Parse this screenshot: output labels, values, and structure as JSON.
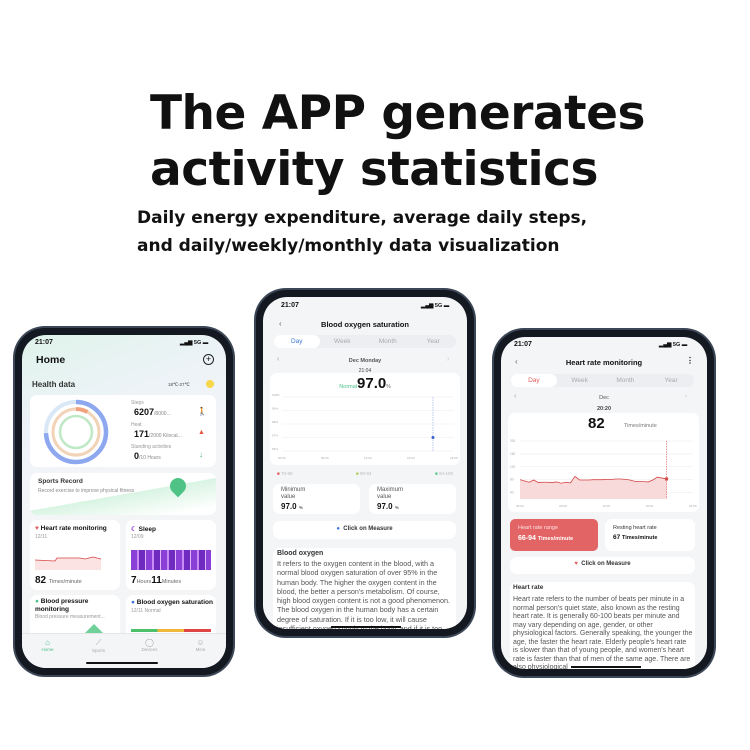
{
  "headline": {
    "line1": "The APP generates",
    "line2": "activity statistics"
  },
  "subtitle": {
    "line1": "Daily energy expenditure, average daily steps,",
    "line2": "and daily/weekly/monthly data visualization"
  },
  "colors": {
    "accent_blue": "#3a78d8",
    "heart_red": "#e25c5c",
    "oxygen_green": "#4cc08a",
    "sleep_purple": "#9b45e0"
  },
  "phone_home": {
    "time": "21:07",
    "network": "5G",
    "title": "Home",
    "plus_icon": "plus-circle-icon",
    "health_data": "Health data",
    "weather": "18℃-27℃",
    "steps": {
      "label": "Steps",
      "value": "6207",
      "goal": "/8000..."
    },
    "heat": {
      "label": "Heat",
      "value": "171",
      "goal": "/2000 Kilocal..."
    },
    "standing": {
      "label": "Standing activities",
      "value": "0",
      "goal": "/10 Hours"
    },
    "sports": {
      "title": "Sports Record",
      "desc": "Record exercise to improve physical fitness"
    },
    "heart": {
      "title": "Heart rate monitoring",
      "date": "12/11",
      "value": "82",
      "unit": "Times/minute"
    },
    "sleep": {
      "title": "Sleep",
      "date": "12/09",
      "hours": "7",
      "hours_unit": "Hours",
      "minutes": "11",
      "minutes_unit": "Minutes"
    },
    "bp": {
      "title": "Blood pressure monitoring",
      "desc": "Blood pressure measurement..."
    },
    "oxy": {
      "title": "Blood oxygen saturation",
      "desc": "12/11 Normal"
    },
    "tabs": [
      {
        "label": "Home",
        "icon": "home-icon"
      },
      {
        "label": "Sports",
        "icon": "sports-icon"
      },
      {
        "label": "Devices",
        "icon": "watch-icon"
      },
      {
        "label": "Mine",
        "icon": "user-icon"
      }
    ]
  },
  "phone_oxygen": {
    "time": "21:07",
    "network": "5G",
    "title": "Blood oxygen saturation",
    "tabs": [
      "Day",
      "Week",
      "Month",
      "Year"
    ],
    "date": "Dec Monday",
    "reading_time": "21:04",
    "status": "Normal",
    "value": "97.0",
    "unit": "%",
    "chart_data": {
      "type": "scatter",
      "y_ticks": [
        "100%",
        "99%",
        "98%",
        "97%",
        "96%"
      ],
      "x_ticks": [
        "00:00",
        "06:00",
        "12:00",
        "18:00",
        "24:00"
      ],
      "points": [
        {
          "x": "21:04",
          "y": 97.0
        }
      ]
    },
    "legend": [
      {
        "label": "70-90",
        "color": "#d9534f"
      },
      {
        "label": "90-94",
        "color": "#a8c94a"
      },
      {
        "label": "94-100",
        "color": "#4cc08a"
      }
    ],
    "min": {
      "label": "Minimum value",
      "value": "97.0",
      "unit": "%"
    },
    "max": {
      "label": "Maximum value",
      "value": "97.0",
      "unit": "%"
    },
    "measure": "Click on Measure",
    "info_title": "Blood oxygen",
    "info_text": "It refers to the oxygen content in the blood, with a normal blood oxygen saturation of over 95% in the human body. The higher the oxygen content in the blood, the better a person's metabolism. Of course, high blood oxygen content is not a good phenomenon. The blood oxygen in the human body has a certain degree of saturation. If it is too low, it will cause insufficient oxygen supply to the body, and if it is too high, it will lead to cell aging in the body."
  },
  "phone_heart": {
    "time": "21:07",
    "network": "5G",
    "title": "Heart rate monitoring",
    "tabs": [
      "Day",
      "Week",
      "Month",
      "Year"
    ],
    "date": "Dec",
    "reading_time": "20:20",
    "value": "82",
    "unit": "Times/minute",
    "chart_data": {
      "type": "area",
      "y_ticks": [
        "200",
        "160",
        "120",
        "80",
        "40"
      ],
      "ylim": [
        20,
        200
      ],
      "x_ticks": [
        "00:00",
        "06:00",
        "12:00",
        "18:00",
        "24:00"
      ],
      "values": [
        80,
        76,
        72,
        79,
        71,
        72,
        72,
        71,
        73,
        69,
        72,
        70,
        90,
        79,
        79,
        79,
        80,
        80,
        80,
        81,
        81,
        82,
        82,
        81,
        79,
        75,
        74,
        74,
        73,
        79,
        88,
        85,
        82
      ]
    },
    "range": {
      "label": "Heart rate range",
      "value": "66-94",
      "unit": "Times/minute"
    },
    "resting": {
      "label": "Resting heart rate",
      "value": "67",
      "unit": "Times/minute"
    },
    "measure": "Click on Measure",
    "info_title": "Heart rate",
    "info_text": "Heart rate refers to the number of beats per minute in a normal person's quiet state, also known as the resting heart rate. It is generally 60-100 beats per minute and may vary depending on age, gender, or other physiological factors. Generally speaking, the younger the age, the faster the heart rate. Elderly people's heart rate is slower than that of young people, and women's heart rate is faster than that of men of the same age. There are also physiological"
  }
}
